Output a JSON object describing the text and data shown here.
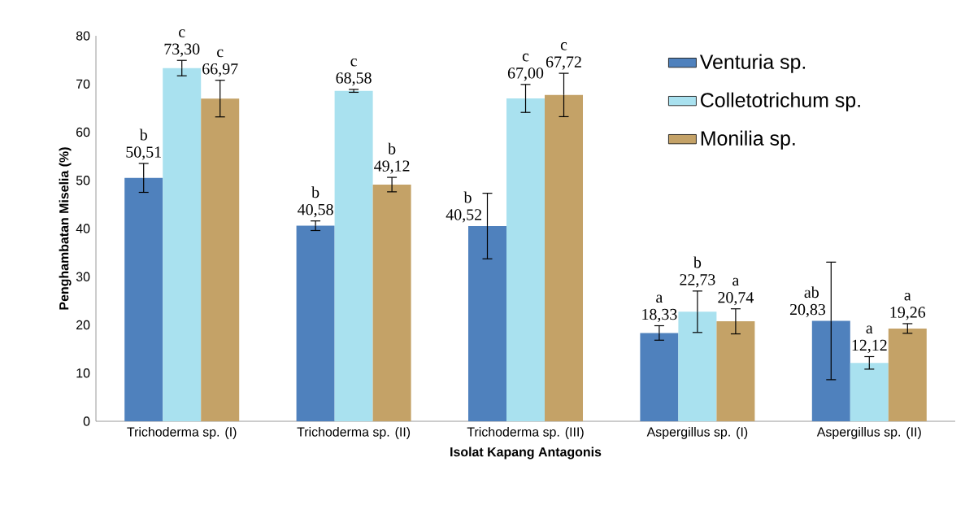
{
  "chart_data": {
    "type": "bar",
    "xlabel": "Isolat Kapang Antagonis",
    "ylabel": "Penghambatan Miselia (%)",
    "categories": [
      "Trichoderma sp. (I)",
      "Trichoderma sp. (II)",
      "Trichoderma sp. (III)",
      "Aspergillus sp. (I)",
      "Aspergillus sp. (II)"
    ],
    "series": [
      {
        "name": "Venturia sp.",
        "color": "#4f81bd",
        "values": [
          50.51,
          40.58,
          40.52,
          18.33,
          20.83
        ],
        "errors": [
          3.0,
          1.0,
          6.8,
          1.5,
          12.2
        ],
        "value_labels": [
          "50,51",
          "40,58",
          "40,52",
          "18,33",
          "20,83"
        ]
      },
      {
        "name": "Colletotrichum sp.",
        "color": "#a9e1ef",
        "values": [
          73.3,
          68.58,
          67.0,
          22.73,
          12.12
        ],
        "errors": [
          1.6,
          0.3,
          2.9,
          4.3,
          1.3
        ],
        "value_labels": [
          "73,30",
          "68,58",
          "67,00",
          "22,73",
          "12,12"
        ]
      },
      {
        "name": "Monilia sp.",
        "color": "#c4a267",
        "values": [
          66.97,
          49.12,
          67.72,
          20.74,
          19.26
        ],
        "errors": [
          3.8,
          1.5,
          4.5,
          2.6,
          1.0
        ],
        "value_labels": [
          "66,97",
          "49,12",
          "67,72",
          "20,74",
          "19,26"
        ]
      }
    ],
    "annotations": [
      "b",
      "b",
      "b",
      "a",
      "ab",
      "c",
      "c",
      "c",
      "b",
      "a",
      "c",
      "b",
      "c",
      "a",
      "a"
    ],
    "ylim": [
      0,
      80
    ],
    "yticks": [
      0,
      10,
      20,
      30,
      40,
      50,
      60,
      70,
      80
    ],
    "legend": "top right",
    "grid": false
  }
}
